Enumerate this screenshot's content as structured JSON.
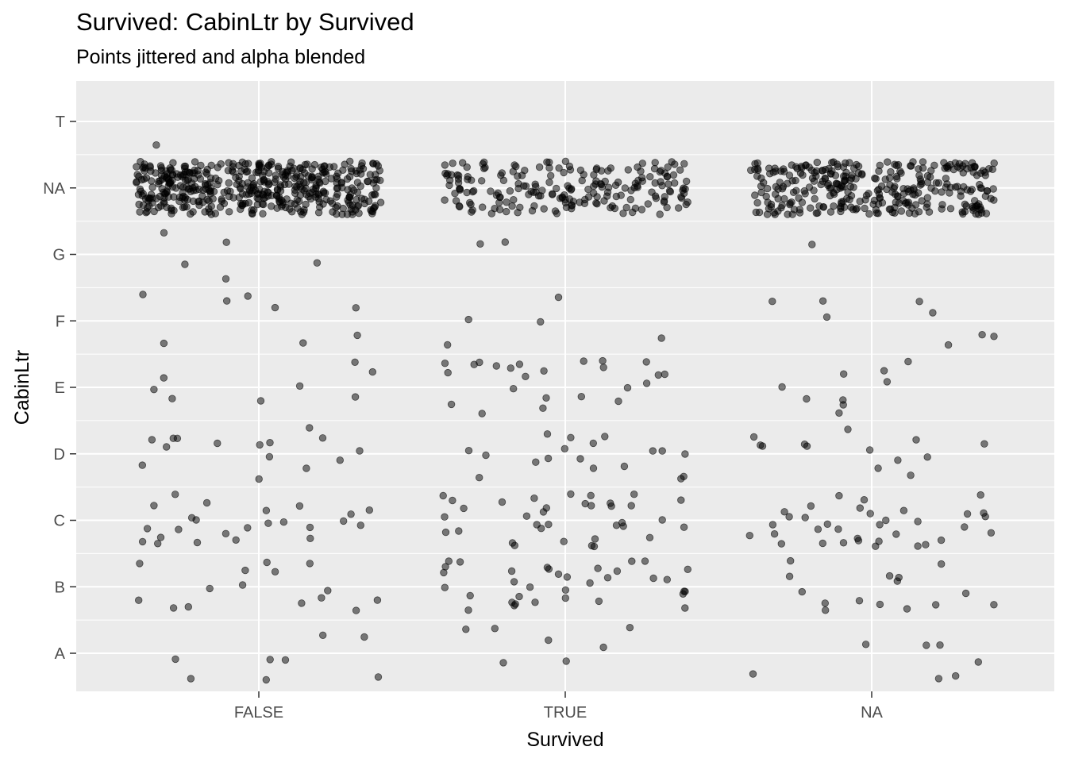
{
  "chart_data": {
    "type": "scatter",
    "title": "Survived: CabinLtr by Survived",
    "subtitle": "Points jittered and alpha blended",
    "xlabel": "Survived",
    "ylabel": "CabinLtr",
    "x_categories": [
      "FALSE",
      "TRUE",
      "NA"
    ],
    "y_categories": [
      "A",
      "B",
      "C",
      "D",
      "E",
      "F",
      "G",
      "NA",
      "T"
    ],
    "jitter": true,
    "alpha_blended": true,
    "point_color": "#000000",
    "panel_background": "#ebebeb",
    "grid_color": "#ffffff",
    "grid": true,
    "counts": {
      "FALSE": {
        "A": 8,
        "B": 15,
        "C": 24,
        "D": 15,
        "E": 8,
        "F": 8,
        "G": 5,
        "NA": 481,
        "T": 1
      },
      "TRUE": {
        "A": 7,
        "B": 35,
        "C": 35,
        "D": 18,
        "E": 24,
        "F": 5,
        "G": 2,
        "NA": 206,
        "T": 0
      },
      "NA": {
        "A": 7,
        "B": 15,
        "C": 35,
        "D": 13,
        "E": 9,
        "F": 8,
        "G": 1,
        "NA": 326,
        "T": 0
      }
    }
  }
}
